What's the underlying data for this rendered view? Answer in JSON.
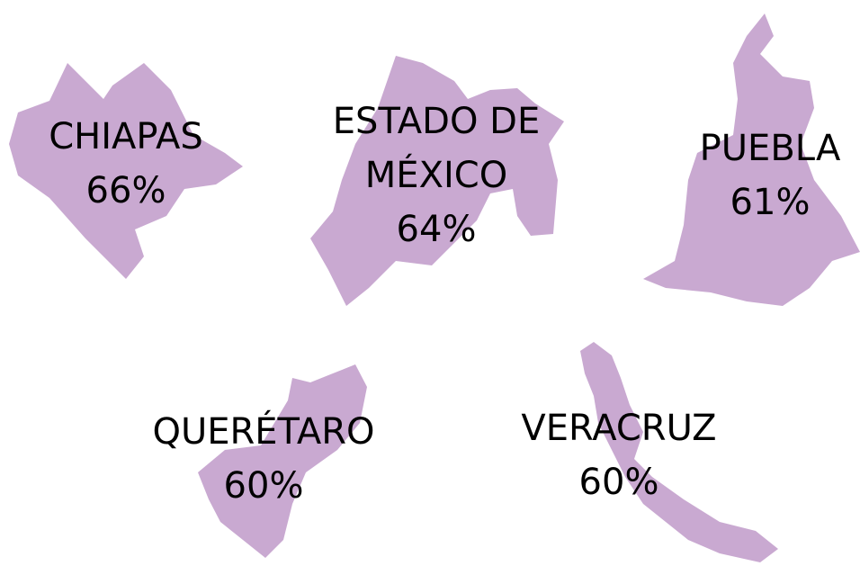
{
  "states": [
    {
      "name": "CHIAPAS",
      "value": "66%"
    },
    {
      "name": "ESTADO DE MÉXICO",
      "value": "64%"
    },
    {
      "name": "PUEBLA",
      "value": "61%"
    },
    {
      "name": "QUERÉTARO",
      "value": "60%"
    },
    {
      "name": "VERACRUZ",
      "value": "60%"
    }
  ]
}
